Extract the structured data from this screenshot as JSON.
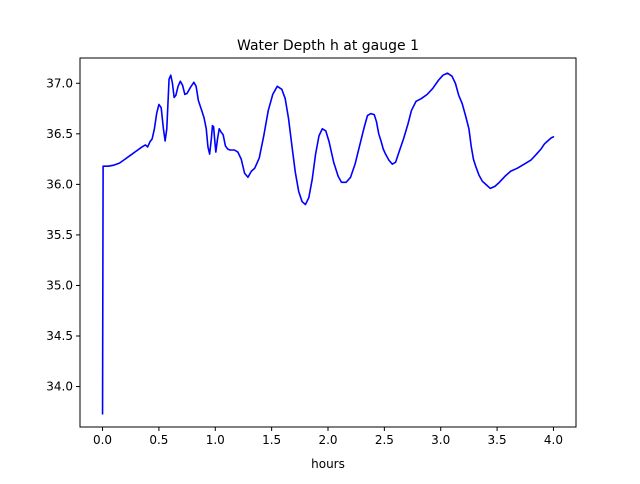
{
  "chart_data": {
    "type": "line",
    "title": "Water Depth h at gauge 1",
    "xlabel": "hours",
    "ylabel": "",
    "xlim": [
      -0.2,
      4.2
    ],
    "ylim": [
      33.6,
      37.25
    ],
    "xticks": [
      0.0,
      0.5,
      1.0,
      1.5,
      2.0,
      2.5,
      3.0,
      3.5,
      4.0
    ],
    "xtick_labels": [
      "0.0",
      "0.5",
      "1.0",
      "1.5",
      "2.0",
      "2.5",
      "3.0",
      "3.5",
      "4.0"
    ],
    "yticks": [
      34.0,
      34.5,
      35.0,
      35.5,
      36.0,
      36.5,
      37.0
    ],
    "ytick_labels": [
      "34.0",
      "34.5",
      "35.0",
      "35.5",
      "36.0",
      "36.5",
      "37.0"
    ],
    "grid": false,
    "legend": "none",
    "series": [
      {
        "color": "#0000ff",
        "points": [
          [
            0.0,
            33.73
          ],
          [
            0.005,
            36.18
          ],
          [
            0.05,
            36.18
          ],
          [
            0.1,
            36.19
          ],
          [
            0.15,
            36.21
          ],
          [
            0.2,
            36.25
          ],
          [
            0.25,
            36.29
          ],
          [
            0.3,
            36.33
          ],
          [
            0.35,
            36.37
          ],
          [
            0.38,
            36.39
          ],
          [
            0.4,
            36.37
          ],
          [
            0.42,
            36.42
          ],
          [
            0.44,
            36.45
          ],
          [
            0.46,
            36.55
          ],
          [
            0.48,
            36.7
          ],
          [
            0.5,
            36.79
          ],
          [
            0.52,
            36.76
          ],
          [
            0.54,
            36.55
          ],
          [
            0.555,
            36.43
          ],
          [
            0.57,
            36.55
          ],
          [
            0.59,
            37.04
          ],
          [
            0.605,
            37.08
          ],
          [
            0.62,
            37.0
          ],
          [
            0.635,
            36.86
          ],
          [
            0.65,
            36.88
          ],
          [
            0.67,
            36.97
          ],
          [
            0.69,
            37.02
          ],
          [
            0.71,
            36.98
          ],
          [
            0.73,
            36.89
          ],
          [
            0.75,
            36.9
          ],
          [
            0.78,
            36.96
          ],
          [
            0.81,
            37.01
          ],
          [
            0.83,
            36.97
          ],
          [
            0.85,
            36.83
          ],
          [
            0.88,
            36.73
          ],
          [
            0.9,
            36.66
          ],
          [
            0.92,
            36.55
          ],
          [
            0.935,
            36.37
          ],
          [
            0.95,
            36.3
          ],
          [
            0.965,
            36.45
          ],
          [
            0.975,
            36.58
          ],
          [
            0.985,
            36.57
          ],
          [
            0.995,
            36.44
          ],
          [
            1.005,
            36.32
          ],
          [
            1.02,
            36.45
          ],
          [
            1.035,
            36.55
          ],
          [
            1.05,
            36.52
          ],
          [
            1.07,
            36.49
          ],
          [
            1.09,
            36.38
          ],
          [
            1.11,
            36.35
          ],
          [
            1.13,
            36.34
          ],
          [
            1.17,
            36.34
          ],
          [
            1.2,
            36.32
          ],
          [
            1.23,
            36.25
          ],
          [
            1.26,
            36.11
          ],
          [
            1.29,
            36.07
          ],
          [
            1.32,
            36.13
          ],
          [
            1.35,
            36.16
          ],
          [
            1.39,
            36.26
          ],
          [
            1.43,
            36.48
          ],
          [
            1.47,
            36.73
          ],
          [
            1.51,
            36.89
          ],
          [
            1.55,
            36.97
          ],
          [
            1.59,
            36.94
          ],
          [
            1.62,
            36.85
          ],
          [
            1.65,
            36.65
          ],
          [
            1.68,
            36.38
          ],
          [
            1.71,
            36.12
          ],
          [
            1.74,
            35.93
          ],
          [
            1.77,
            35.83
          ],
          [
            1.8,
            35.8
          ],
          [
            1.83,
            35.87
          ],
          [
            1.86,
            36.05
          ],
          [
            1.89,
            36.3
          ],
          [
            1.92,
            36.48
          ],
          [
            1.95,
            36.55
          ],
          [
            1.98,
            36.53
          ],
          [
            2.01,
            36.42
          ],
          [
            2.05,
            36.22
          ],
          [
            2.09,
            36.08
          ],
          [
            2.12,
            36.02
          ],
          [
            2.16,
            36.02
          ],
          [
            2.2,
            36.07
          ],
          [
            2.24,
            36.2
          ],
          [
            2.28,
            36.38
          ],
          [
            2.32,
            36.56
          ],
          [
            2.35,
            36.68
          ],
          [
            2.38,
            36.7
          ],
          [
            2.41,
            36.69
          ],
          [
            2.43,
            36.62
          ],
          [
            2.45,
            36.5
          ],
          [
            2.47,
            36.43
          ],
          [
            2.49,
            36.35
          ],
          [
            2.51,
            36.3
          ],
          [
            2.54,
            36.24
          ],
          [
            2.57,
            36.2
          ],
          [
            2.6,
            36.22
          ],
          [
            2.63,
            36.32
          ],
          [
            2.67,
            36.45
          ],
          [
            2.71,
            36.6
          ],
          [
            2.74,
            36.73
          ],
          [
            2.78,
            36.82
          ],
          [
            2.83,
            36.85
          ],
          [
            2.88,
            36.89
          ],
          [
            2.93,
            36.95
          ],
          [
            2.98,
            37.03
          ],
          [
            3.02,
            37.08
          ],
          [
            3.06,
            37.1
          ],
          [
            3.1,
            37.07
          ],
          [
            3.13,
            37.0
          ],
          [
            3.16,
            36.88
          ],
          [
            3.19,
            36.8
          ],
          [
            3.22,
            36.68
          ],
          [
            3.25,
            36.55
          ],
          [
            3.27,
            36.38
          ],
          [
            3.29,
            36.25
          ],
          [
            3.31,
            36.18
          ],
          [
            3.34,
            36.09
          ],
          [
            3.37,
            36.03
          ],
          [
            3.4,
            36.0
          ],
          [
            3.44,
            35.96
          ],
          [
            3.48,
            35.98
          ],
          [
            3.52,
            36.02
          ],
          [
            3.57,
            36.08
          ],
          [
            3.62,
            36.13
          ],
          [
            3.68,
            36.16
          ],
          [
            3.74,
            36.2
          ],
          [
            3.8,
            36.24
          ],
          [
            3.85,
            36.3
          ],
          [
            3.89,
            36.35
          ],
          [
            3.92,
            36.4
          ],
          [
            3.95,
            36.43
          ],
          [
            3.98,
            36.46
          ],
          [
            4.0,
            36.47
          ]
        ]
      }
    ]
  }
}
